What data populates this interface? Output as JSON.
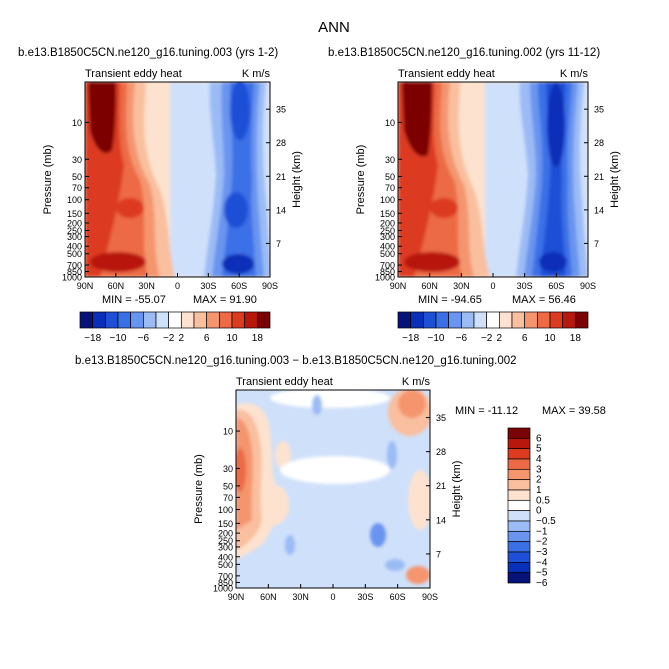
{
  "figure_title": "ANN",
  "chart_data": [
    {
      "type": "heatmap",
      "kind": "latitude-pressure contour",
      "title": "b.e13.B1850C5CN.ne120_g16.tuning.003 (yrs 1-2)",
      "left_label": "Transient eddy heat",
      "right_label": "K m/s",
      "ylabel": "Pressure (mb)",
      "ylabel_right": "Height (km)",
      "x_ticks": [
        "90N",
        "60N",
        "30N",
        "0",
        "30S",
        "60S",
        "90S"
      ],
      "y_ticks": [
        "10",
        "30",
        "50",
        "70",
        "100",
        "150",
        "200",
        "250",
        "300",
        "400",
        "500",
        "700",
        "850",
        "1000"
      ],
      "y_right_ticks": [
        "35",
        "28",
        "21",
        "14",
        "7"
      ],
      "ylim_mb": [
        1000,
        3
      ],
      "min_label": "MIN = -55.07",
      "max_label": "MAX =  91.90",
      "min_value": -55.07,
      "max_value": 91.9,
      "colorbar_levels": [
        -18,
        -14,
        -10,
        -8,
        -6,
        -4,
        -2,
        0,
        2,
        4,
        6,
        8,
        10,
        14,
        18
      ],
      "colorbar_tick_labels": [
        "-18",
        "-10",
        "-6",
        "-2",
        "2",
        "6",
        "10",
        "18"
      ]
    },
    {
      "type": "heatmap",
      "kind": "latitude-pressure contour",
      "title": "b.e13.B1850C5CN.ne120_g16.tuning.002 (yrs 11-12)",
      "left_label": "Transient eddy heat",
      "right_label": "K m/s",
      "ylabel": "Pressure (mb)",
      "ylabel_right": "Height (km)",
      "x_ticks": [
        "90N",
        "60N",
        "30N",
        "0",
        "30S",
        "60S",
        "90S"
      ],
      "y_ticks": [
        "10",
        "30",
        "50",
        "70",
        "100",
        "150",
        "200",
        "250",
        "300",
        "400",
        "500",
        "700",
        "850",
        "1000"
      ],
      "y_right_ticks": [
        "35",
        "28",
        "21",
        "14",
        "7"
      ],
      "ylim_mb": [
        1000,
        3
      ],
      "min_label": "MIN = -94.65",
      "max_label": "MAX =  56.46",
      "min_value": -94.65,
      "max_value": 56.46,
      "colorbar_levels": [
        -18,
        -14,
        -10,
        -8,
        -6,
        -4,
        -2,
        0,
        2,
        4,
        6,
        8,
        10,
        14,
        18
      ],
      "colorbar_tick_labels": [
        "-18",
        "-10",
        "-6",
        "-2",
        "2",
        "6",
        "10",
        "18"
      ]
    },
    {
      "type": "heatmap",
      "kind": "difference latitude-pressure contour",
      "title": "b.e13.B1850C5CN.ne120_g16.tuning.003 − b.e13.B1850C5CN.ne120_g16.tuning.002",
      "left_label": "Transient eddy heat",
      "right_label": "K m/s",
      "ylabel": "Pressure (mb)",
      "ylabel_right": "Height (km)",
      "x_ticks": [
        "90N",
        "60N",
        "30N",
        "0",
        "30S",
        "60S",
        "90S"
      ],
      "y_ticks": [
        "10",
        "30",
        "50",
        "70",
        "100",
        "150",
        "200",
        "250",
        "300",
        "400",
        "500",
        "700",
        "850",
        "1000"
      ],
      "y_right_ticks": [
        "35",
        "28",
        "21",
        "14",
        "7"
      ],
      "ylim_mb": [
        1000,
        3
      ],
      "min_label": "MIN = -11.12",
      "max_label": "MAX =  39.58",
      "min_value": -11.12,
      "max_value": 39.58,
      "colorbar_levels": [
        6,
        5,
        4,
        3,
        2,
        1,
        0.5,
        0,
        -0.5,
        -1,
        -2,
        -3,
        -4,
        -5,
        -6
      ],
      "colorbar_tick_labels": [
        "6",
        "5",
        "4",
        "3",
        "2",
        "1",
        "0.5",
        "0",
        "−0.5",
        "−1",
        "−2",
        "−3",
        "−4",
        "−5",
        "−6"
      ]
    }
  ],
  "palette": {
    "levels15": [
      "#08137a",
      "#0a2fb8",
      "#1f4fd6",
      "#3a6fe6",
      "#6994ef",
      "#9bbbf5",
      "#cfe0fa",
      "#ffffff",
      "#fde2cf",
      "#f9bf9f",
      "#f4956e",
      "#ec6a45",
      "#dc3b22",
      "#b8170e",
      "#7c0303"
    ],
    "diff16": [
      "#7c0303",
      "#b8170e",
      "#dc3b22",
      "#ec6a45",
      "#f4956e",
      "#f9bf9f",
      "#fde2cf",
      "#ffffff",
      "#cfe0fa",
      "#9bbbf5",
      "#6994ef",
      "#3a6fe6",
      "#1f4fd6",
      "#0a2fb8",
      "#08137a"
    ]
  }
}
